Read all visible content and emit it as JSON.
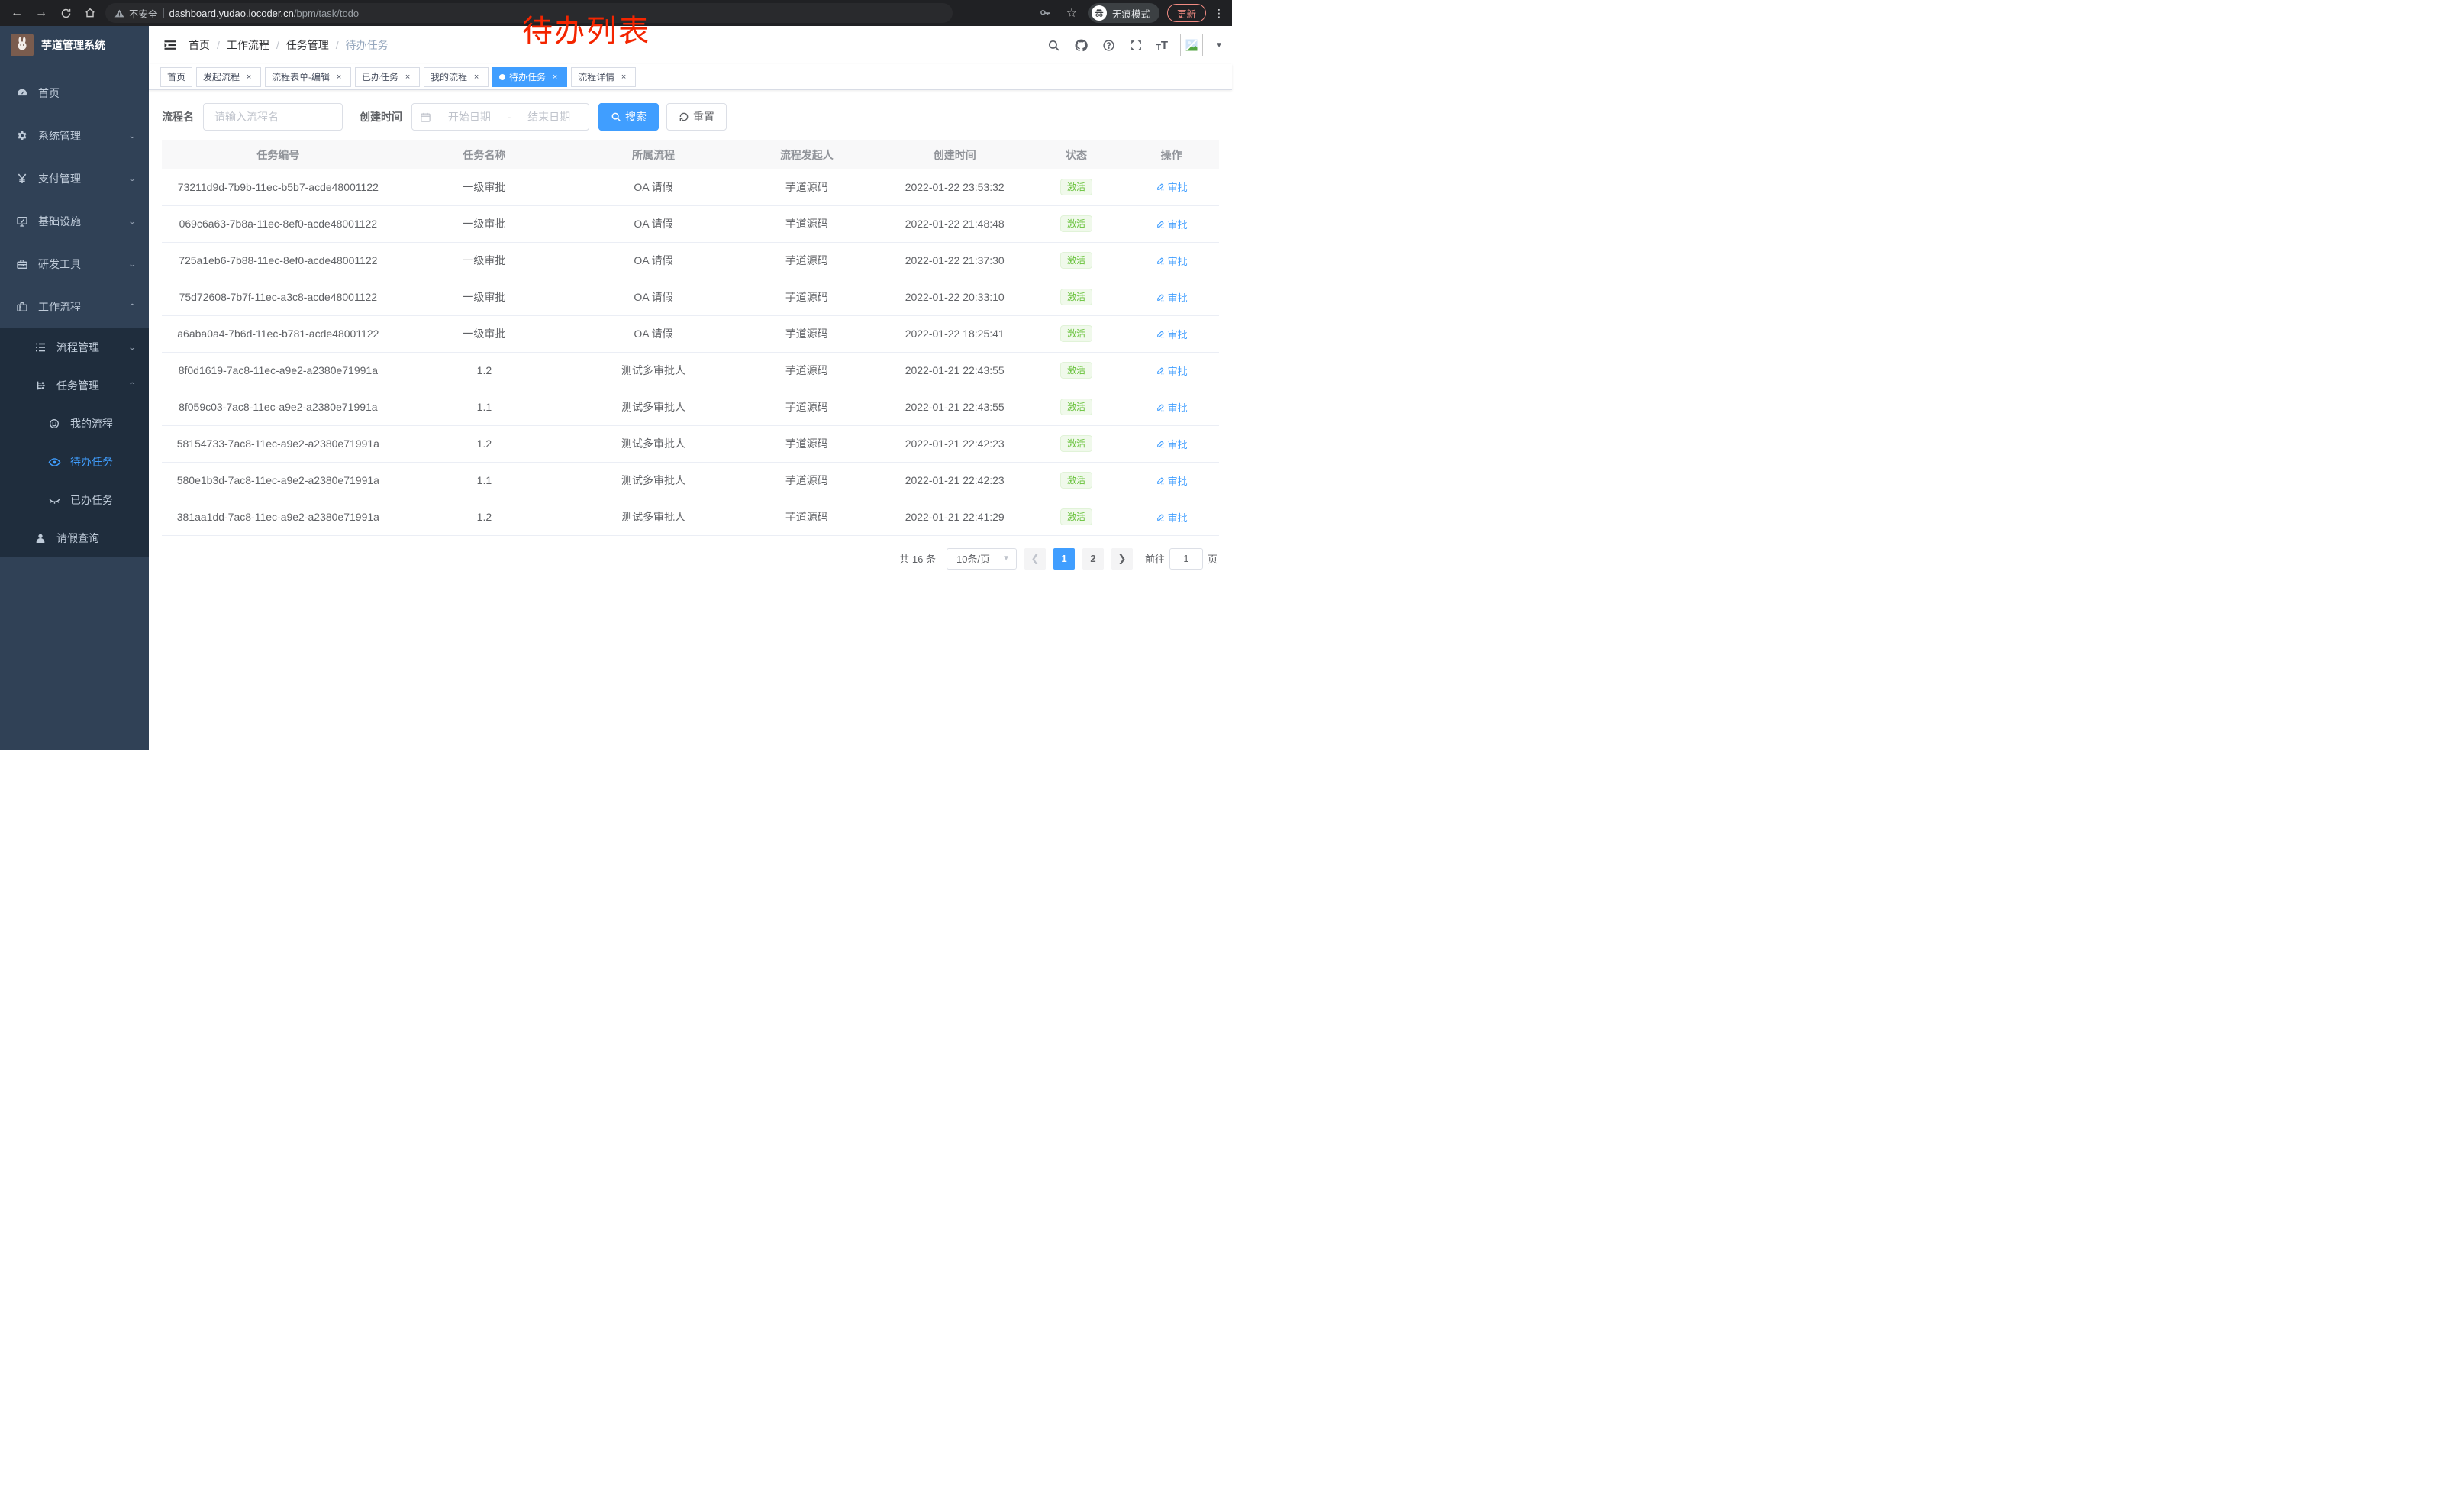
{
  "browser": {
    "security_warning": "不安全",
    "url_host": "dashboard.yudao.iocoder.cn",
    "url_path": "/bpm/task/todo",
    "incognito_label": "无痕模式",
    "update_label": "更新"
  },
  "annotation": {
    "text": "待办列表",
    "color": "#f42500"
  },
  "sidebar": {
    "title": "芋道管理系统",
    "menu": [
      {
        "label": "首页",
        "icon": "dashboard-icon",
        "level": 0,
        "arrow": "",
        "sub": false,
        "active": false
      },
      {
        "label": "系统管理",
        "icon": "gear-icon",
        "level": 0,
        "arrow": "down",
        "sub": false,
        "active": false
      },
      {
        "label": "支付管理",
        "icon": "yen-icon",
        "level": 0,
        "arrow": "down",
        "sub": false,
        "active": false
      },
      {
        "label": "基础设施",
        "icon": "monitor-icon",
        "level": 0,
        "arrow": "down",
        "sub": false,
        "active": false
      },
      {
        "label": "研发工具",
        "icon": "toolbox-icon",
        "level": 0,
        "arrow": "down",
        "sub": false,
        "active": false
      },
      {
        "label": "工作流程",
        "icon": "suitcase-icon",
        "level": 0,
        "arrow": "up",
        "sub": false,
        "active": false
      },
      {
        "label": "流程管理",
        "icon": "list-icon",
        "level": 1,
        "arrow": "down",
        "sub": true,
        "active": false
      },
      {
        "label": "任务管理",
        "icon": "tree-icon",
        "level": 1,
        "arrow": "up",
        "sub": true,
        "active": false
      },
      {
        "label": "我的流程",
        "icon": "face-icon",
        "level": 2,
        "arrow": "",
        "sub": true,
        "active": false
      },
      {
        "label": "待办任务",
        "icon": "eye-icon",
        "level": 2,
        "arrow": "",
        "sub": true,
        "active": true
      },
      {
        "label": "已办任务",
        "icon": "eye-closed-icon",
        "level": 2,
        "arrow": "",
        "sub": true,
        "active": false
      },
      {
        "label": "请假查询",
        "icon": "user-icon",
        "level": 1,
        "arrow": "",
        "sub": true,
        "active": false
      }
    ]
  },
  "header": {
    "breadcrumb": [
      "首页",
      "工作流程",
      "任务管理",
      "待办任务"
    ],
    "icons": [
      "search-icon",
      "github-icon",
      "help-icon",
      "fullscreen-icon",
      "textsize-icon",
      "avatar",
      "caret-down-icon"
    ]
  },
  "tabs": [
    {
      "label": "首页",
      "closable": false,
      "active": false
    },
    {
      "label": "发起流程",
      "closable": true,
      "active": false
    },
    {
      "label": "流程表单-编辑",
      "closable": true,
      "active": false
    },
    {
      "label": "已办任务",
      "closable": true,
      "active": false
    },
    {
      "label": "我的流程",
      "closable": true,
      "active": false
    },
    {
      "label": "待办任务",
      "closable": true,
      "active": true
    },
    {
      "label": "流程详情",
      "closable": true,
      "active": false
    }
  ],
  "filters": {
    "name_label": "流程名",
    "name_placeholder": "请输入流程名",
    "time_label": "创建时间",
    "start_placeholder": "开始日期",
    "range_separator": "-",
    "end_placeholder": "结束日期",
    "search_label": "搜索",
    "reset_label": "重置"
  },
  "table": {
    "columns": [
      "任务编号",
      "任务名称",
      "所属流程",
      "流程发起人",
      "创建时间",
      "状态",
      "操作"
    ],
    "col_widths": [
      "22%",
      "17%",
      "15%",
      "14%",
      "14%",
      "9%",
      "9%"
    ],
    "action_label": "审批",
    "status_active_label": "激活",
    "rows": [
      {
        "id": "73211d9d-7b9b-11ec-b5b7-acde48001122",
        "name": "一级审批",
        "process": "OA 请假",
        "starter": "芋道源码",
        "created": "2022-01-22 23:53:32",
        "status": "激活"
      },
      {
        "id": "069c6a63-7b8a-11ec-8ef0-acde48001122",
        "name": "一级审批",
        "process": "OA 请假",
        "starter": "芋道源码",
        "created": "2022-01-22 21:48:48",
        "status": "激活"
      },
      {
        "id": "725a1eb6-7b88-11ec-8ef0-acde48001122",
        "name": "一级审批",
        "process": "OA 请假",
        "starter": "芋道源码",
        "created": "2022-01-22 21:37:30",
        "status": "激活"
      },
      {
        "id": "75d72608-7b7f-11ec-a3c8-acde48001122",
        "name": "一级审批",
        "process": "OA 请假",
        "starter": "芋道源码",
        "created": "2022-01-22 20:33:10",
        "status": "激活"
      },
      {
        "id": "a6aba0a4-7b6d-11ec-b781-acde48001122",
        "name": "一级审批",
        "process": "OA 请假",
        "starter": "芋道源码",
        "created": "2022-01-22 18:25:41",
        "status": "激活"
      },
      {
        "id": "8f0d1619-7ac8-11ec-a9e2-a2380e71991a",
        "name": "1.2",
        "process": "测试多审批人",
        "starter": "芋道源码",
        "created": "2022-01-21 22:43:55",
        "status": "激活"
      },
      {
        "id": "8f059c03-7ac8-11ec-a9e2-a2380e71991a",
        "name": "1.1",
        "process": "测试多审批人",
        "starter": "芋道源码",
        "created": "2022-01-21 22:43:55",
        "status": "激活"
      },
      {
        "id": "58154733-7ac8-11ec-a9e2-a2380e71991a",
        "name": "1.2",
        "process": "测试多审批人",
        "starter": "芋道源码",
        "created": "2022-01-21 22:42:23",
        "status": "激活"
      },
      {
        "id": "580e1b3d-7ac8-11ec-a9e2-a2380e71991a",
        "name": "1.1",
        "process": "测试多审批人",
        "starter": "芋道源码",
        "created": "2022-01-21 22:42:23",
        "status": "激活"
      },
      {
        "id": "381aa1dd-7ac8-11ec-a9e2-a2380e71991a",
        "name": "1.2",
        "process": "测试多审批人",
        "starter": "芋道源码",
        "created": "2022-01-21 22:41:29",
        "status": "激活"
      }
    ]
  },
  "pagination": {
    "total_label": "共 16 条",
    "page_size_label": "10条/页",
    "pages": [
      "1",
      "2"
    ],
    "active_page": "1",
    "goto_label": "前往",
    "goto_value": "1",
    "goto_suffix": "页"
  },
  "colors": {
    "accent": "#409eff",
    "sidebar_bg": "#304156",
    "submenu_bg": "#1f2d3d",
    "badge_green": "#67c23a",
    "badge_bg": "#f0f9eb",
    "annotation_red": "#f42500",
    "update_button": "#f28b82"
  }
}
